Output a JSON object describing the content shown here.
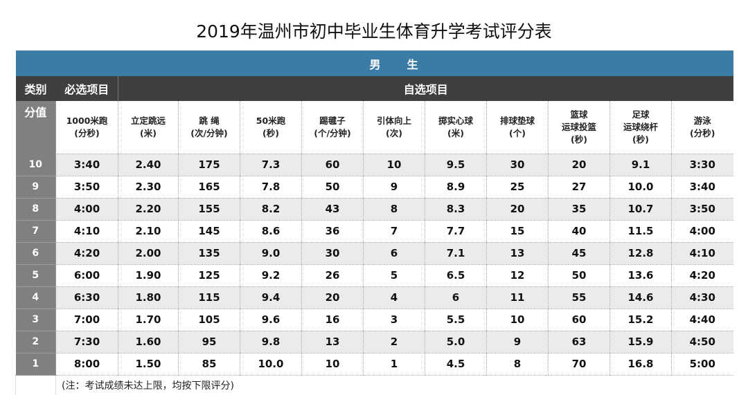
{
  "title": "2019年温州市初中毕业生体育升学考试评分表",
  "gender_header": "男　　生",
  "category_label": "类别",
  "required_label": "必选项目",
  "optional_label": "自选项目",
  "score_label": "分值",
  "columns": [
    [
      "1000米跑",
      "(分秒)"
    ],
    [
      "立定跳远",
      "(米)"
    ],
    [
      "跳 绳",
      "(次/分钟)"
    ],
    [
      "50米跑",
      "(秒)"
    ],
    [
      "踢毽子",
      "(个/分钟)"
    ],
    [
      "引体向上",
      "(次)"
    ],
    [
      "掷实心球",
      "(米)"
    ],
    [
      "排球垫球",
      "(个)"
    ],
    [
      "篮球",
      "运球投篮",
      "(秒)"
    ],
    [
      "足球",
      "运球绕杆",
      "(秒)"
    ],
    [
      "游泳",
      "(分秒)"
    ]
  ],
  "rows": [
    {
      "score": "10",
      "values": [
        "3:40",
        "2.40",
        "175",
        "7.3",
        "60",
        "10",
        "9.5",
        "30",
        "20",
        "9.1",
        "3:30"
      ]
    },
    {
      "score": "9",
      "values": [
        "3:50",
        "2.30",
        "165",
        "7.8",
        "50",
        "9",
        "8.9",
        "25",
        "27",
        "10.0",
        "3:40"
      ]
    },
    {
      "score": "8",
      "values": [
        "4:00",
        "2.20",
        "155",
        "8.2",
        "43",
        "8",
        "8.3",
        "20",
        "35",
        "10.7",
        "3:50"
      ]
    },
    {
      "score": "7",
      "values": [
        "4:10",
        "2.10",
        "145",
        "8.6",
        "36",
        "7",
        "7.7",
        "15",
        "40",
        "11.5",
        "4:00"
      ]
    },
    {
      "score": "6",
      "values": [
        "4:20",
        "2.00",
        "135",
        "9.0",
        "30",
        "6",
        "7.1",
        "13",
        "45",
        "12.8",
        "4:10"
      ]
    },
    {
      "score": "5",
      "values": [
        "6:00",
        "1.90",
        "125",
        "9.2",
        "26",
        "5",
        "6.5",
        "12",
        "50",
        "13.6",
        "4:20"
      ]
    },
    {
      "score": "4",
      "values": [
        "6:30",
        "1.80",
        "115",
        "9.4",
        "20",
        "4",
        "6",
        "11",
        "55",
        "14.6",
        "4:30"
      ]
    },
    {
      "score": "3",
      "values": [
        "7:00",
        "1.70",
        "105",
        "9.6",
        "16",
        "3",
        "5.5",
        "10",
        "60",
        "15.2",
        "4:40"
      ]
    },
    {
      "score": "2",
      "values": [
        "7:30",
        "1.60",
        "95",
        "9.8",
        "13",
        "2",
        "5.0",
        "9",
        "63",
        "15.9",
        "4:50"
      ]
    },
    {
      "score": "1",
      "values": [
        "8:00",
        "1.50",
        "85",
        "10.0",
        "10",
        "1",
        "4.5",
        "8",
        "70",
        "16.8",
        "5:00"
      ]
    }
  ],
  "note": "(注：考试成绩未达上限，均按下限评分)",
  "colors": {
    "header_blue": "#3a7ca5",
    "header_dark": "#3f3f3f",
    "score_gray": "#808080",
    "stripe": "#ebebeb"
  }
}
